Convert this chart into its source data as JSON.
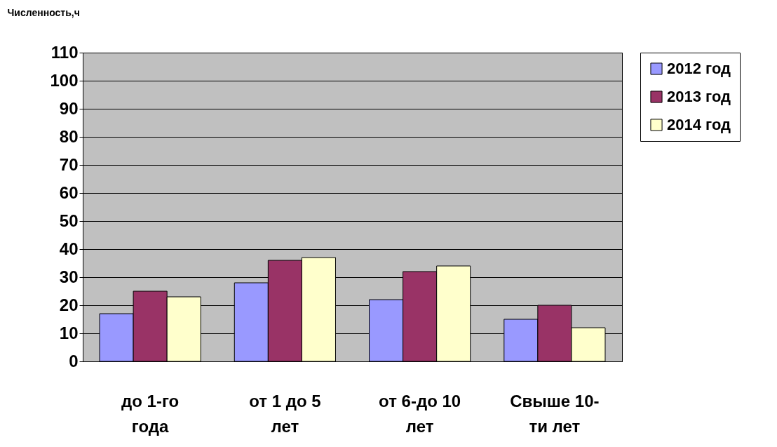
{
  "chart_data": {
    "type": "bar",
    "ylabel": "Численность,ч",
    "categories": [
      "до 1-го\nгода",
      "от 1 до 5\nлет",
      "от 6-до 10\nлет",
      "Свыше 10-\nти лет"
    ],
    "series": [
      {
        "name": "2012 год",
        "color": "#9999ff",
        "values": [
          17,
          28,
          22,
          15
        ]
      },
      {
        "name": "2013 год",
        "color": "#993366",
        "values": [
          25,
          36,
          32,
          20
        ]
      },
      {
        "name": "2014 год",
        "color": "#ffffcc",
        "values": [
          23,
          37,
          34,
          12
        ]
      }
    ],
    "ylim": [
      0,
      110
    ],
    "yticks": [
      0,
      10,
      20,
      30,
      40,
      50,
      60,
      70,
      80,
      90,
      100,
      110
    ],
    "grid": "y",
    "legend": "right"
  }
}
